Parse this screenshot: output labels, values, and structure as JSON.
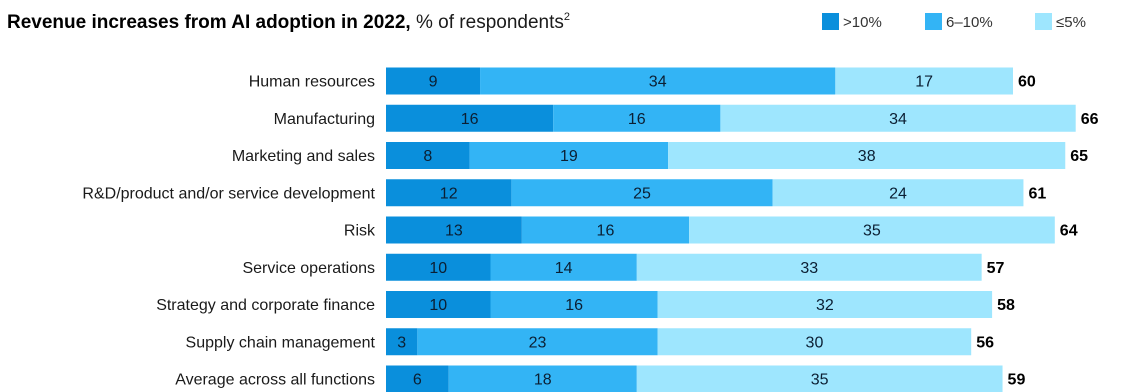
{
  "header": {
    "title_bold": "Revenue increases from AI adoption in 2022,",
    "title_rest": " % of respondents",
    "footnote": "2"
  },
  "chart_data": {
    "type": "bar",
    "orientation": "horizontal",
    "stacked": true,
    "title": "Revenue increases from AI adoption in 2022, % of respondents",
    "categories": [
      "Human resources",
      "Manufacturing",
      "Marketing and sales",
      "R&D/product and/or service development",
      "Risk",
      "Service operations",
      "Strategy and corporate finance",
      "Supply chain management",
      "Average across all functions"
    ],
    "series": [
      {
        "name": ">10%",
        "color": "#0A8FDC",
        "values": [
          9,
          16,
          8,
          12,
          13,
          10,
          10,
          3,
          6
        ]
      },
      {
        "name": "6–10%",
        "color": "#33B4F5",
        "values": [
          34,
          16,
          19,
          25,
          16,
          14,
          16,
          23,
          18
        ]
      },
      {
        "name": "≤5%",
        "color": "#9EE6FE",
        "values": [
          17,
          34,
          38,
          24,
          35,
          33,
          32,
          30,
          35
        ]
      }
    ],
    "totals": [
      60,
      66,
      65,
      61,
      64,
      57,
      58,
      56,
      59
    ],
    "legend_position": "top-right",
    "grid": false,
    "xlim": [
      0,
      66
    ]
  }
}
